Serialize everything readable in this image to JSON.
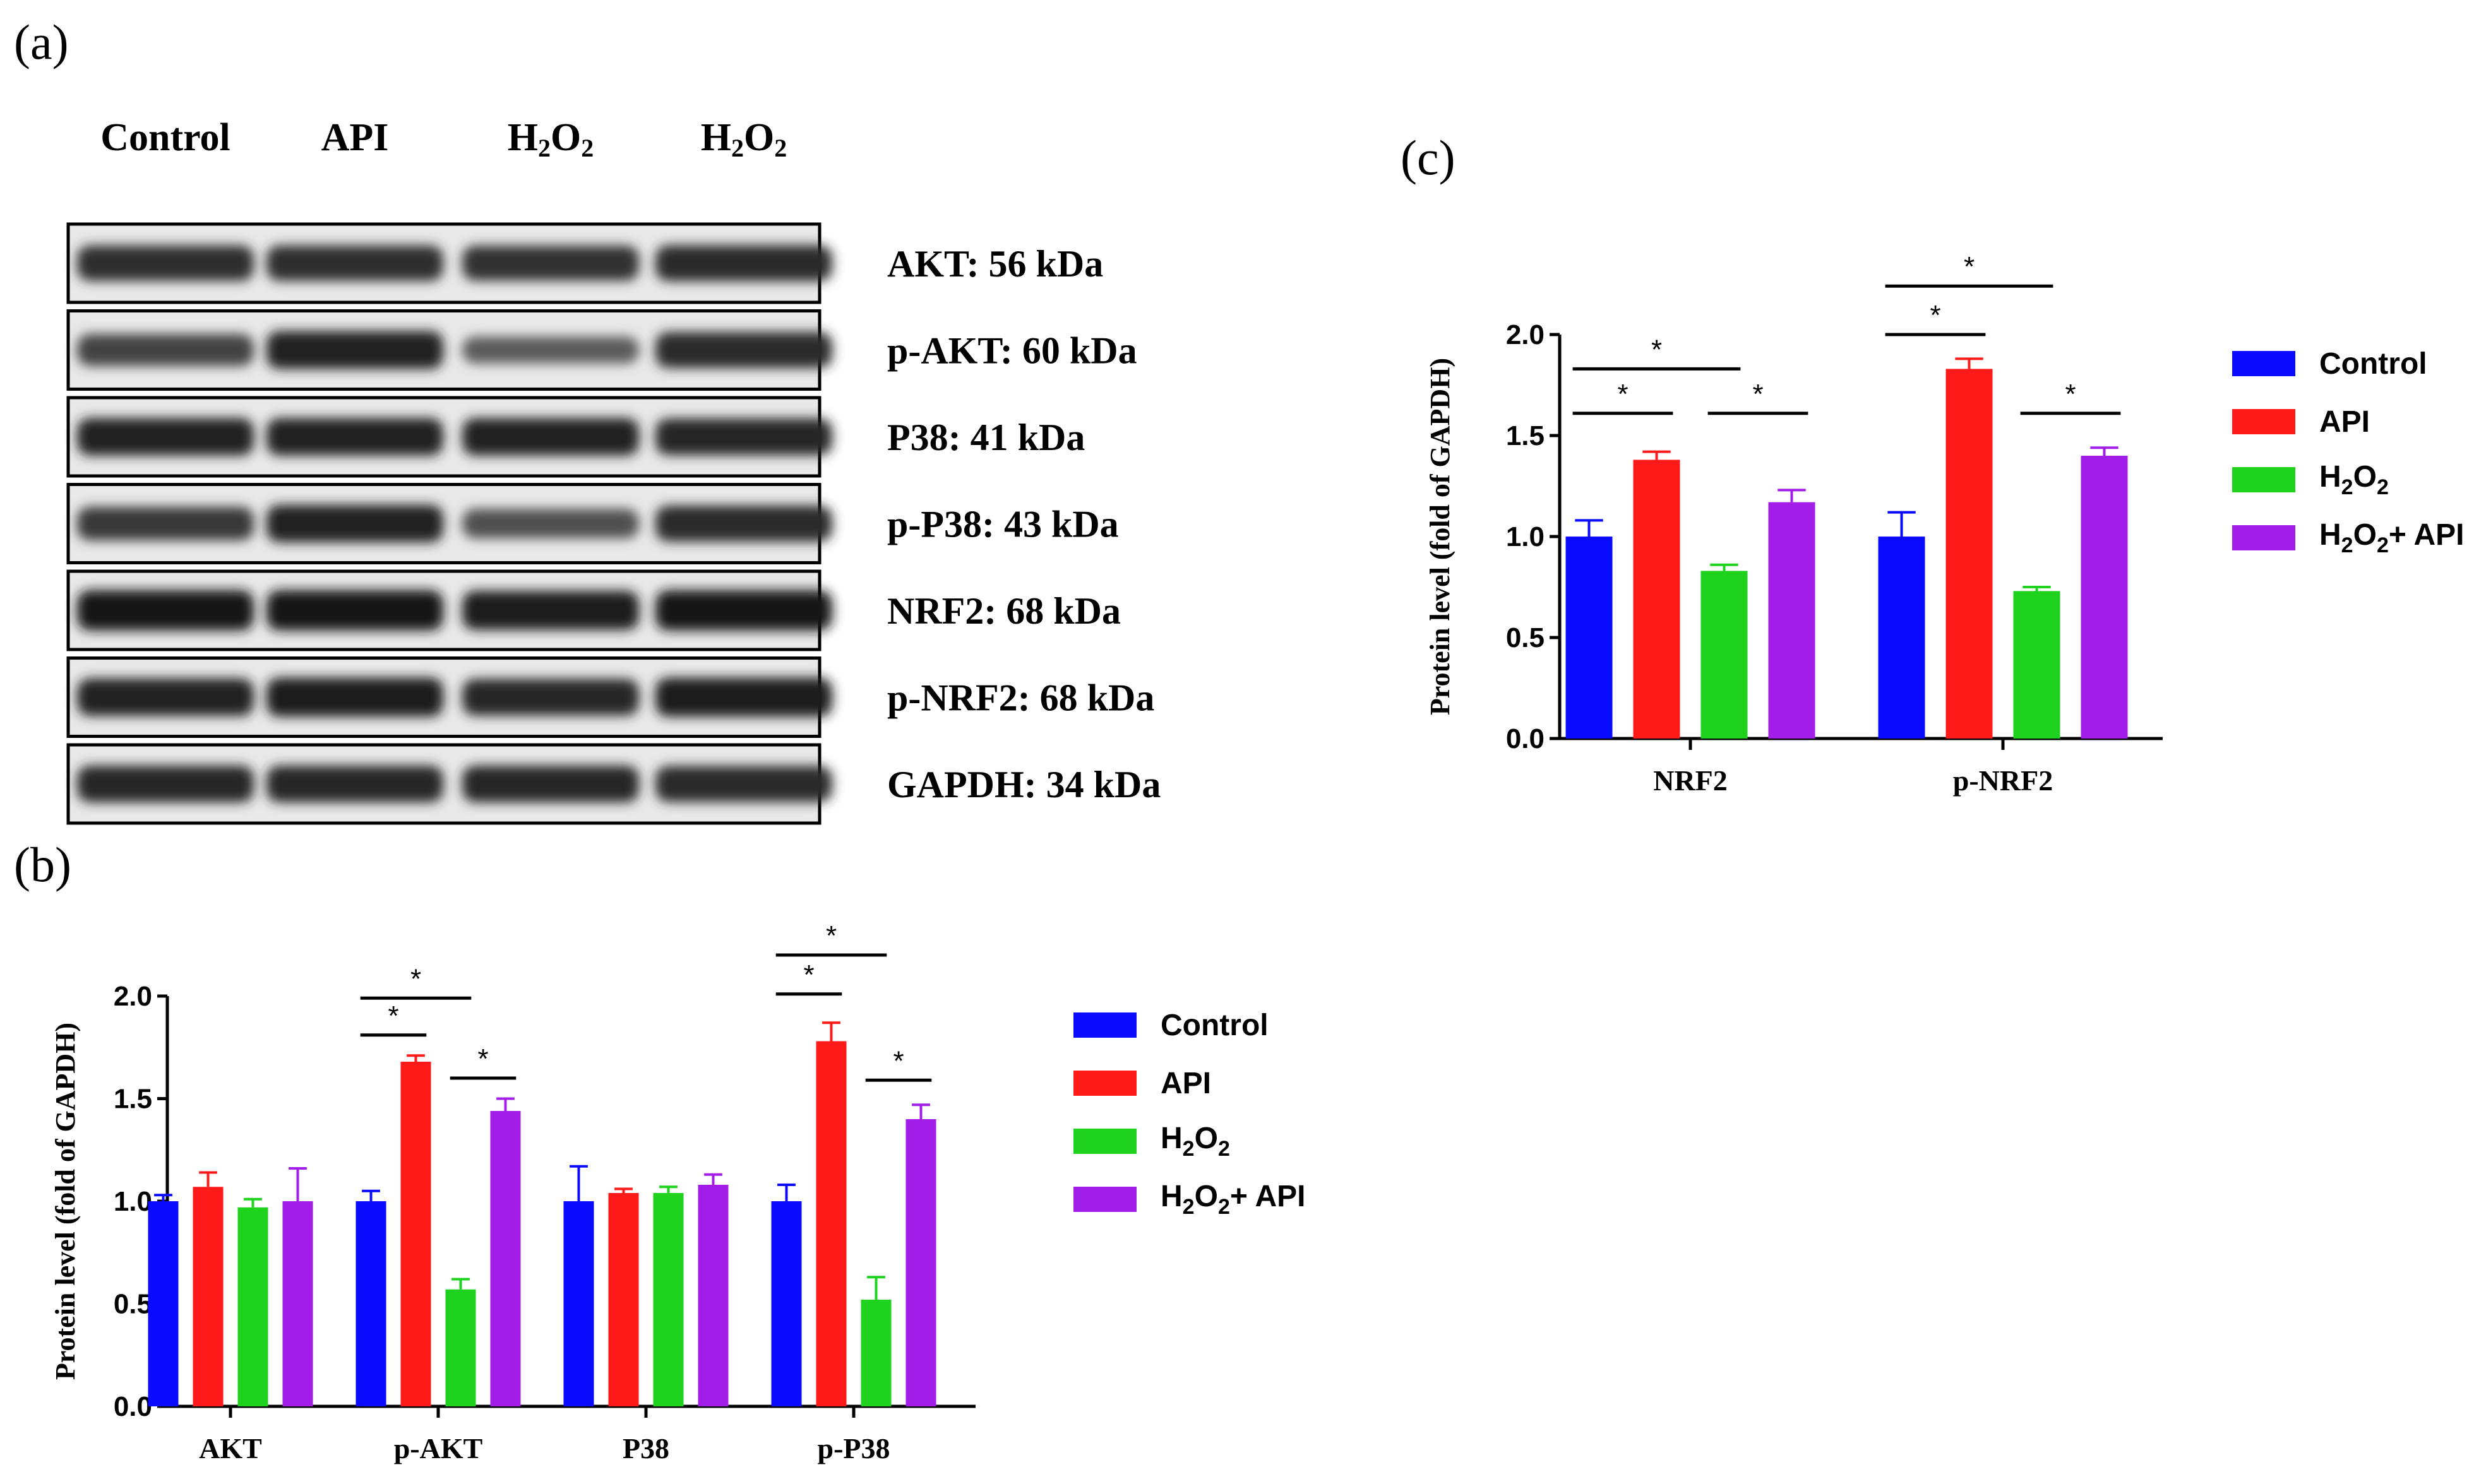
{
  "panels": {
    "a": "(a)",
    "b": "(b)",
    "c": "(c)"
  },
  "blot": {
    "lanes": [
      {
        "main": "Control",
        "sub1": "",
        "mid": "",
        "sub2": ""
      },
      {
        "main": "API",
        "sub1": "",
        "mid": "",
        "sub2": ""
      },
      {
        "main": "H",
        "sub1": "2",
        "mid": "O",
        "sub2": "2"
      },
      {
        "main": "H",
        "sub1": "2",
        "mid": "O",
        "sub2": "2"
      }
    ],
    "bands": [
      {
        "label": "AKT: 56 kDa",
        "intensity": [
          0.8,
          0.8,
          0.78,
          0.82
        ]
      },
      {
        "label": "p-AKT: 60 kDa",
        "intensity": [
          0.65,
          0.9,
          0.45,
          0.82
        ]
      },
      {
        "label": "P38: 41 kDa",
        "intensity": [
          0.88,
          0.88,
          0.88,
          0.85
        ]
      },
      {
        "label": "p-P38: 43 kDa",
        "intensity": [
          0.72,
          0.88,
          0.55,
          0.82
        ]
      },
      {
        "label": "NRF2: 68 kDa",
        "intensity": [
          1.0,
          1.0,
          0.95,
          1.0
        ]
      },
      {
        "label": "p-NRF2: 68 kDa",
        "intensity": [
          0.88,
          0.95,
          0.85,
          0.95
        ]
      },
      {
        "label": "GAPDH: 34 kDa",
        "intensity": [
          0.85,
          0.85,
          0.85,
          0.82
        ]
      }
    ]
  },
  "legend": [
    {
      "main": "Control",
      "sub1": "",
      "mid": "",
      "sub2": "",
      "suffix": "",
      "color": "#0a0aff"
    },
    {
      "main": "API",
      "sub1": "",
      "mid": "",
      "sub2": "",
      "suffix": "",
      "color": "#ff1a1a"
    },
    {
      "main": "H",
      "sub1": "2",
      "mid": "O",
      "sub2": "2",
      "suffix": "",
      "color": "#1ed21e"
    },
    {
      "main": "H",
      "sub1": "2",
      "mid": "O",
      "sub2": "2",
      "suffix": "+ API",
      "color": "#a21ee8"
    }
  ],
  "chart_data": [
    {
      "id": "b",
      "type": "bar",
      "ylabel": "Protein level (fold of GAPDH)",
      "ylim": [
        0,
        2.0
      ],
      "yticks": [
        "0.0",
        "0.5",
        "1.0",
        "1.5",
        "2.0"
      ],
      "categories": [
        "AKT",
        "p-AKT",
        "P38",
        "p-P38"
      ],
      "series": [
        {
          "name": "Control",
          "color": "#0a0aff",
          "values": [
            1.0,
            1.0,
            1.0,
            1.0
          ],
          "errors": [
            0.03,
            0.05,
            0.17,
            0.08
          ]
        },
        {
          "name": "API",
          "color": "#ff1a1a",
          "values": [
            1.07,
            1.68,
            1.04,
            1.78
          ],
          "errors": [
            0.07,
            0.03,
            0.02,
            0.09
          ]
        },
        {
          "name": "H2O2",
          "color": "#1ed21e",
          "values": [
            0.97,
            0.57,
            1.04,
            0.52
          ],
          "errors": [
            0.04,
            0.05,
            0.03,
            0.11
          ]
        },
        {
          "name": "H2O2+ API",
          "color": "#a21ee8",
          "values": [
            1.0,
            1.44,
            1.08,
            1.4
          ],
          "errors": [
            0.16,
            0.06,
            0.05,
            0.07
          ]
        }
      ],
      "significance": [
        {
          "label": "*",
          "category": 1,
          "from": 0,
          "to": 1,
          "y": 1.81
        },
        {
          "label": "*",
          "category": 1,
          "from": 0,
          "to": 2,
          "y": 1.99
        },
        {
          "label": "*",
          "category": 1,
          "from": 2,
          "to": 3,
          "y": 1.6
        },
        {
          "label": "*",
          "category": 3,
          "from": 0,
          "to": 1,
          "y": 2.01
        },
        {
          "label": "*",
          "category": 3,
          "from": 0,
          "to": 2,
          "y": 2.2
        },
        {
          "label": "*",
          "category": 3,
          "from": 2,
          "to": 3,
          "y": 1.59
        }
      ]
    },
    {
      "id": "c",
      "type": "bar",
      "ylabel": "Protein level (fold of GAPDH)",
      "ylim": [
        0,
        2.0
      ],
      "yticks": [
        "0.0",
        "0.5",
        "1.0",
        "1.5",
        "2.0"
      ],
      "categories": [
        "NRF2",
        "p-NRF2"
      ],
      "series": [
        {
          "name": "Control",
          "color": "#0a0aff",
          "values": [
            1.0,
            1.0
          ],
          "errors": [
            0.08,
            0.12
          ]
        },
        {
          "name": "API",
          "color": "#ff1a1a",
          "values": [
            1.38,
            1.83
          ],
          "errors": [
            0.04,
            0.05
          ]
        },
        {
          "name": "H2O2",
          "color": "#1ed21e",
          "values": [
            0.83,
            0.73
          ],
          "errors": [
            0.03,
            0.02
          ]
        },
        {
          "name": "H2O2+ API",
          "color": "#a21ee8",
          "values": [
            1.17,
            1.4
          ],
          "errors": [
            0.06,
            0.04
          ]
        }
      ],
      "significance": [
        {
          "label": "*",
          "category": 0,
          "from": 0,
          "to": 1,
          "y": 1.61
        },
        {
          "label": "*",
          "category": 0,
          "from": 0,
          "to": 2,
          "y": 1.83
        },
        {
          "label": "*",
          "category": 0,
          "from": 2,
          "to": 3,
          "y": 1.61
        },
        {
          "label": "*",
          "category": 1,
          "from": 0,
          "to": 1,
          "y": 2.0
        },
        {
          "label": "*",
          "category": 1,
          "from": 0,
          "to": 2,
          "y": 2.24
        },
        {
          "label": "*",
          "category": 1,
          "from": 2,
          "to": 3,
          "y": 1.61
        }
      ]
    }
  ]
}
